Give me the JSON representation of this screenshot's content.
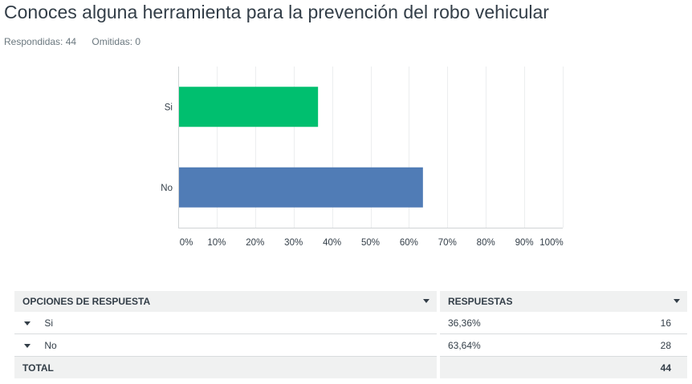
{
  "question": {
    "title": "Conoces alguna herramienta para la prevención del robo vehicular",
    "answered_label": "Respondidas: 44",
    "skipped_label": "Omitidas: 0"
  },
  "chart_data": {
    "type": "bar",
    "orientation": "horizontal",
    "categories": [
      "Si",
      "No"
    ],
    "values": [
      36.36,
      63.64
    ],
    "colors": [
      "#00bf6f",
      "#507cb6"
    ],
    "xlim": [
      0,
      100
    ],
    "ticks": [
      "0%",
      "10%",
      "20%",
      "30%",
      "40%",
      "50%",
      "60%",
      "70%",
      "80%",
      "90%",
      "100%"
    ],
    "grid": true
  },
  "table": {
    "headers": {
      "options": "OPCIONES DE RESPUESTA",
      "responses": "RESPUESTAS"
    },
    "rows": [
      {
        "label": "Si",
        "percent": "36,36%",
        "count": "16"
      },
      {
        "label": "No",
        "percent": "63,64%",
        "count": "28"
      }
    ],
    "total": {
      "label": "TOTAL",
      "count": "44"
    }
  }
}
